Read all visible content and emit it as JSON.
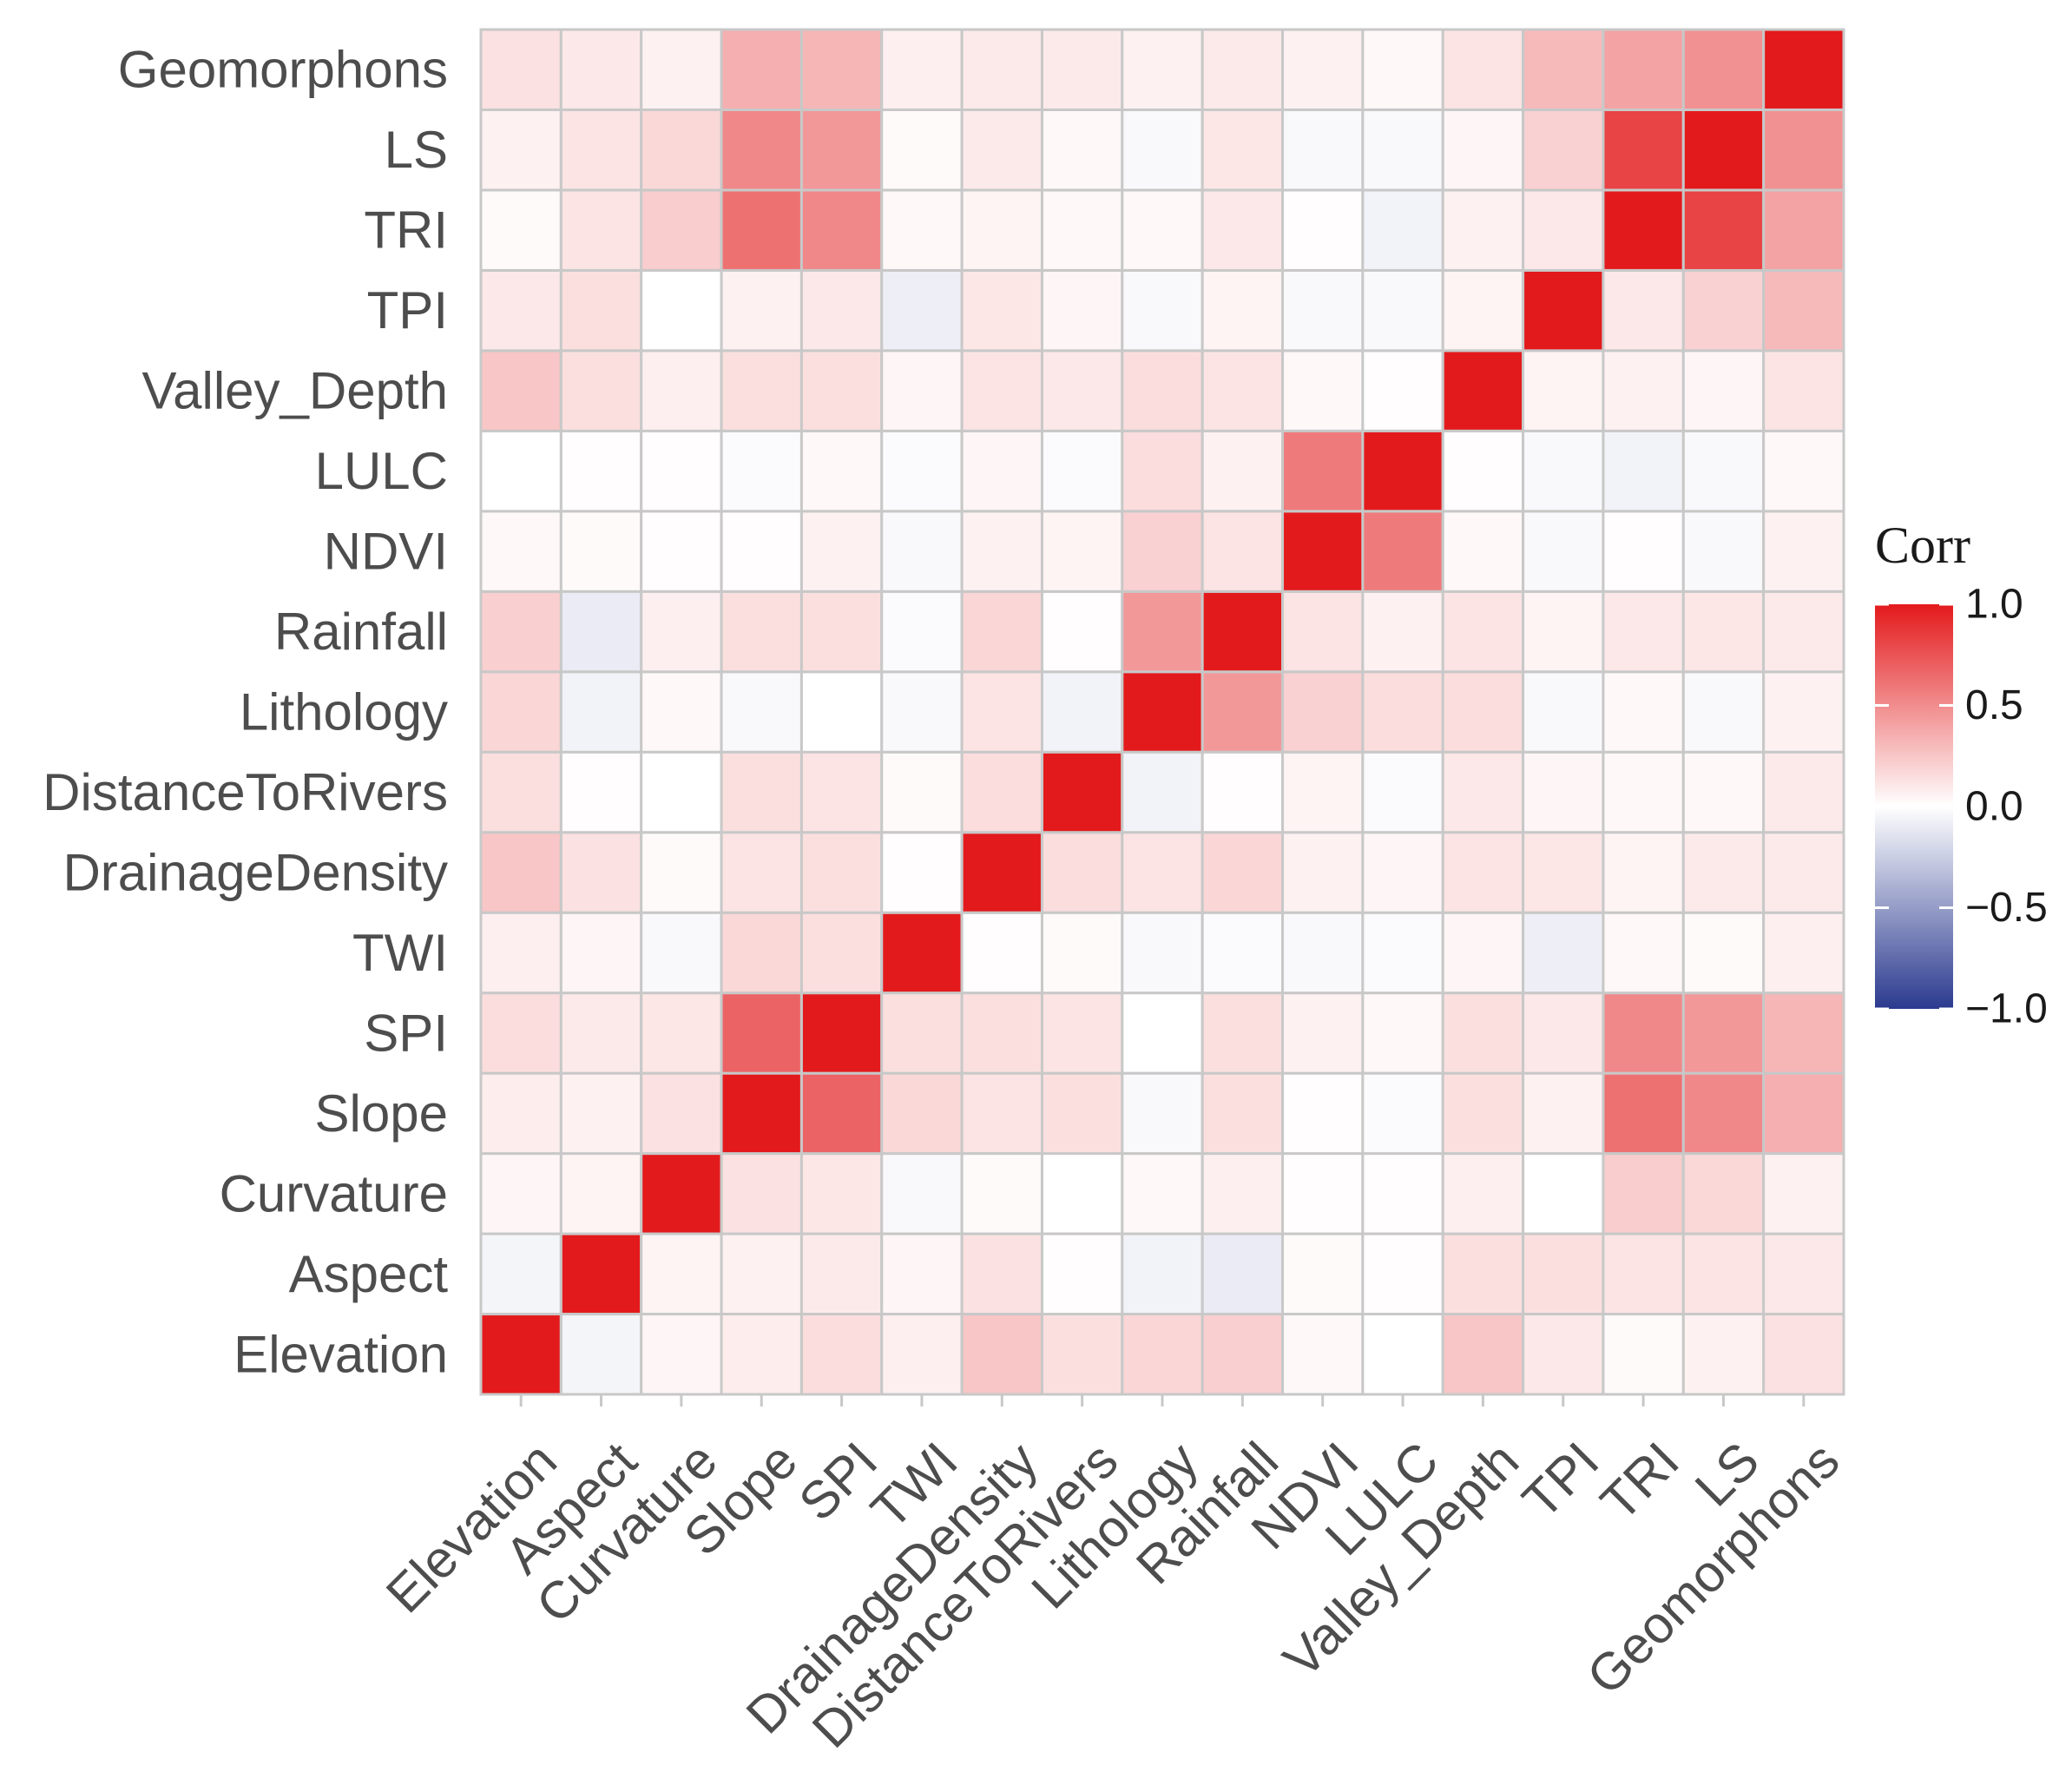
{
  "chart_data": {
    "type": "heatmap",
    "title": "",
    "xlabel": "",
    "ylabel": "",
    "variables": [
      "Elevation",
      "Aspect",
      "Curvature",
      "Slope",
      "SPI",
      "TWI",
      "DrainageDensity",
      "DistanceToRivers",
      "Lithology",
      "Rainfall",
      "NDVI",
      "LULC",
      "Valley_Depth",
      "TPI",
      "TRI",
      "LS",
      "Geomorphons"
    ],
    "matrix": [
      [
        1.0,
        -0.05,
        0.04,
        0.08,
        0.15,
        0.07,
        0.25,
        0.14,
        0.18,
        0.21,
        0.03,
        0.0,
        0.25,
        0.1,
        0.02,
        0.06,
        0.13
      ],
      [
        -0.05,
        1.0,
        0.05,
        0.06,
        0.09,
        0.04,
        0.13,
        0.01,
        -0.06,
        -0.1,
        0.02,
        0.01,
        0.14,
        0.14,
        0.12,
        0.12,
        0.1
      ],
      [
        0.04,
        0.05,
        1.0,
        0.13,
        0.11,
        -0.03,
        0.02,
        0.0,
        0.03,
        0.07,
        0.01,
        0.01,
        0.07,
        0.0,
        0.22,
        0.17,
        0.06
      ],
      [
        0.08,
        0.06,
        0.13,
        1.0,
        0.68,
        0.17,
        0.12,
        0.14,
        -0.03,
        0.14,
        0.01,
        -0.02,
        0.14,
        0.06,
        0.62,
        0.52,
        0.35
      ],
      [
        0.15,
        0.09,
        0.11,
        0.68,
        1.0,
        0.14,
        0.14,
        0.12,
        0.0,
        0.14,
        0.06,
        0.03,
        0.14,
        0.1,
        0.52,
        0.45,
        0.32
      ],
      [
        0.07,
        0.04,
        -0.03,
        0.17,
        0.14,
        1.0,
        0.01,
        0.02,
        -0.03,
        -0.02,
        -0.03,
        -0.02,
        0.04,
        -0.08,
        0.03,
        0.02,
        0.07
      ],
      [
        0.25,
        0.13,
        0.02,
        0.12,
        0.14,
        0.01,
        1.0,
        0.15,
        0.12,
        0.18,
        0.06,
        0.04,
        0.12,
        0.11,
        0.05,
        0.09,
        0.09
      ],
      [
        0.14,
        0.01,
        0.0,
        0.14,
        0.12,
        0.02,
        0.15,
        1.0,
        -0.06,
        0.01,
        0.05,
        -0.02,
        0.1,
        0.04,
        0.03,
        0.03,
        0.09
      ],
      [
        0.18,
        -0.06,
        0.03,
        -0.03,
        0.0,
        -0.03,
        0.12,
        -0.06,
        1.0,
        0.45,
        0.2,
        0.15,
        0.15,
        -0.03,
        0.03,
        -0.03,
        0.06
      ],
      [
        0.21,
        -0.1,
        0.07,
        0.14,
        0.14,
        -0.02,
        0.18,
        0.01,
        0.45,
        1.0,
        0.12,
        0.06,
        0.12,
        0.05,
        0.1,
        0.11,
        0.09
      ],
      [
        0.03,
        0.02,
        0.01,
        0.01,
        0.06,
        -0.03,
        0.06,
        0.05,
        0.2,
        0.12,
        1.0,
        0.58,
        0.03,
        -0.03,
        0.01,
        -0.03,
        0.06
      ],
      [
        0.0,
        0.01,
        0.01,
        -0.02,
        0.03,
        -0.02,
        0.04,
        -0.02,
        0.15,
        0.06,
        0.58,
        1.0,
        0.01,
        -0.03,
        -0.06,
        -0.03,
        0.03
      ],
      [
        0.25,
        0.14,
        0.07,
        0.14,
        0.14,
        0.04,
        0.12,
        0.1,
        0.15,
        0.12,
        0.03,
        0.01,
        1.0,
        0.05,
        0.06,
        0.04,
        0.12
      ],
      [
        0.1,
        0.14,
        0.0,
        0.06,
        0.1,
        -0.08,
        0.11,
        0.04,
        -0.03,
        0.05,
        -0.03,
        -0.03,
        0.05,
        1.0,
        0.1,
        0.2,
        0.3
      ],
      [
        0.02,
        0.12,
        0.22,
        0.62,
        0.52,
        0.03,
        0.05,
        0.03,
        0.03,
        0.1,
        0.01,
        -0.06,
        0.06,
        0.1,
        1.0,
        0.82,
        0.4
      ],
      [
        0.06,
        0.12,
        0.17,
        0.52,
        0.45,
        0.02,
        0.09,
        0.03,
        -0.03,
        0.11,
        -0.03,
        -0.03,
        0.04,
        0.2,
        0.82,
        1.0,
        0.48
      ],
      [
        0.13,
        0.1,
        0.06,
        0.35,
        0.32,
        0.07,
        0.09,
        0.09,
        0.06,
        0.09,
        0.06,
        0.03,
        0.12,
        0.3,
        0.4,
        0.48,
        1.0
      ]
    ],
    "color_scale": {
      "title": "Corr",
      "min": -1.0,
      "max": 1.0,
      "low_color": "#2b3a8f",
      "mid_color": "#ffffff",
      "high_color": "#e31a1c",
      "ticks": [
        1.0,
        0.5,
        0.0,
        -0.5,
        -1.0
      ],
      "tick_labels": [
        "1.0",
        "0.5",
        "0.0",
        "−0.5",
        "−1.0"
      ]
    },
    "y_axis_order": "bottom-to-top",
    "grid_color": "#c8c8c8",
    "legend_position": "right"
  }
}
